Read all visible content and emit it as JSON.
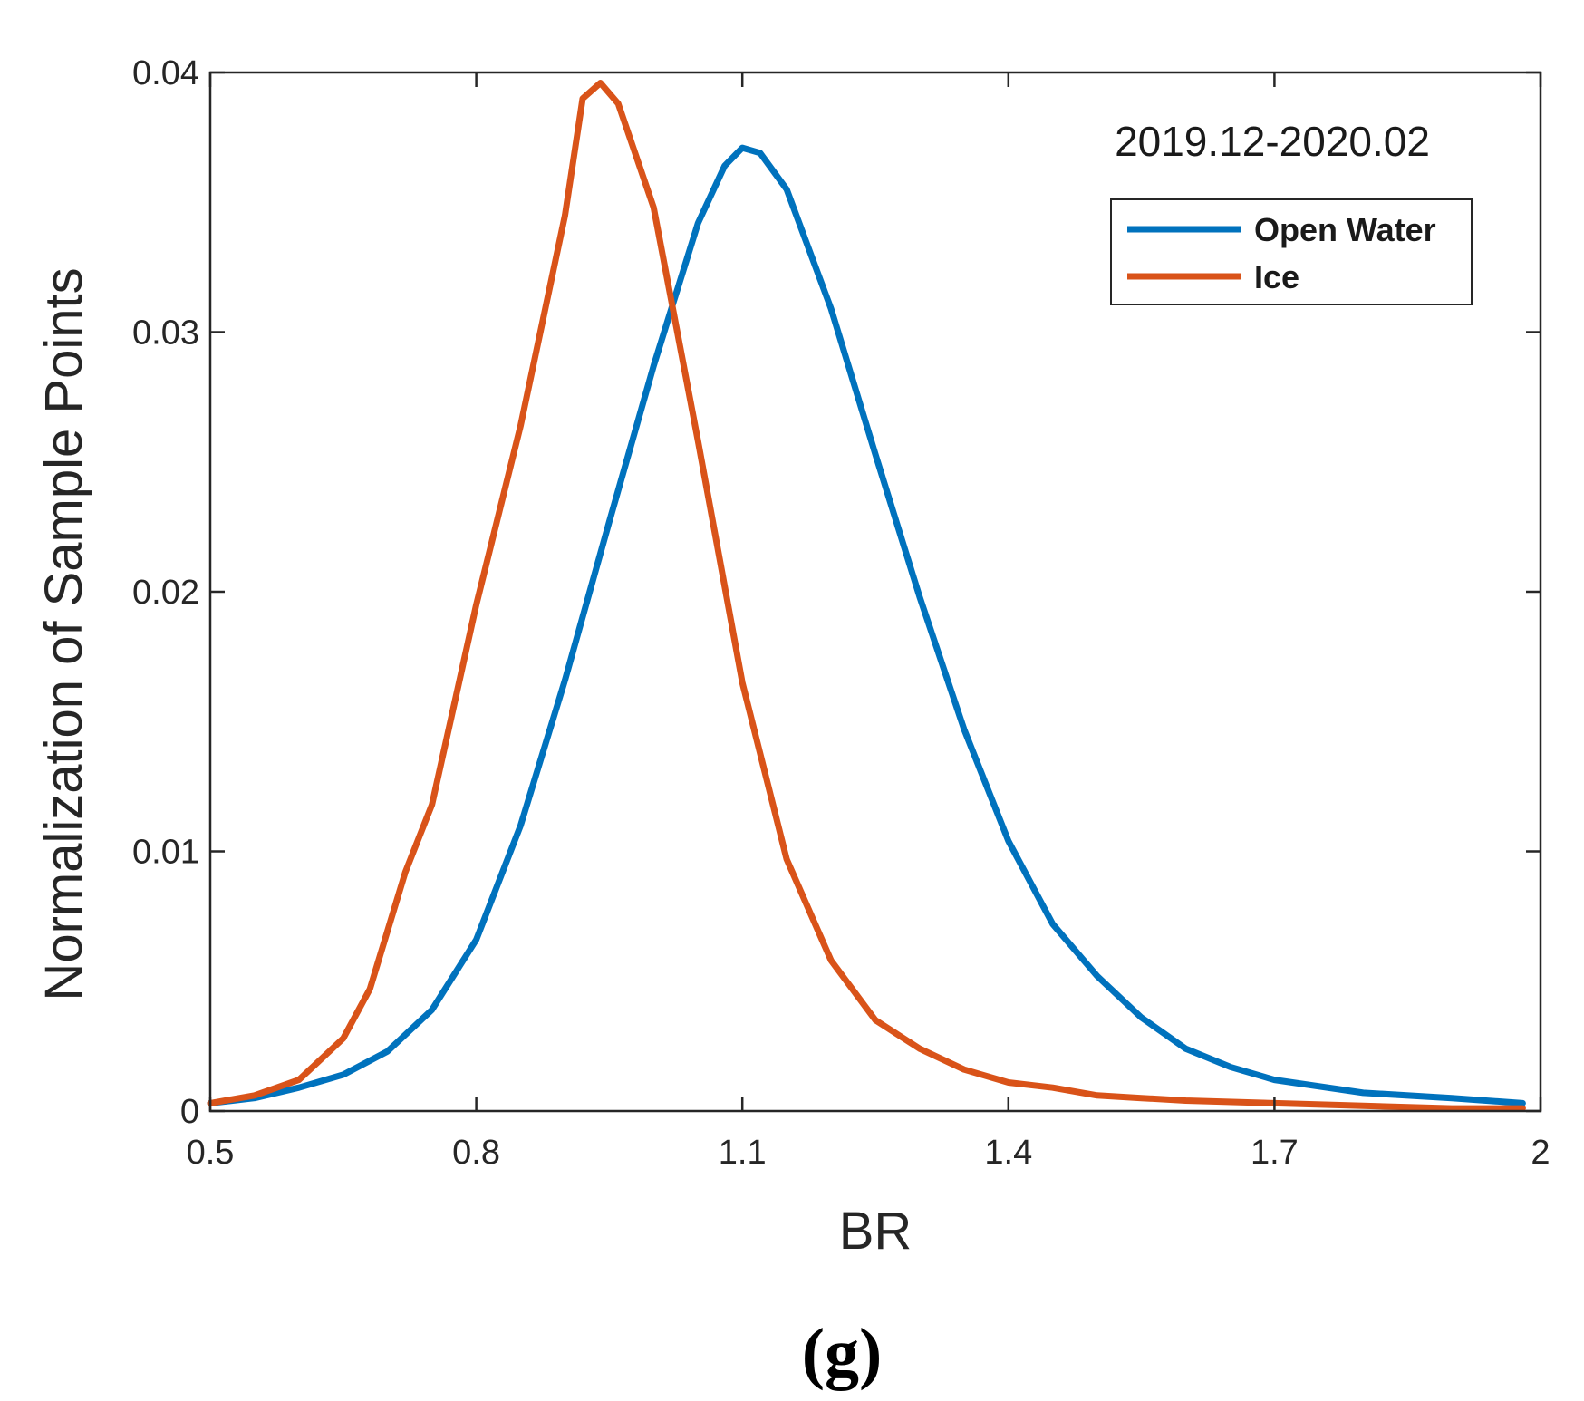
{
  "chart_data": {
    "type": "line",
    "title": "",
    "annotation": "2019.12-2020.02",
    "xlabel": "BR",
    "ylabel": "Normalization of Sample Points",
    "xlim": [
      0.5,
      2.0
    ],
    "ylim": [
      0,
      0.04
    ],
    "xticks": [
      0.5,
      0.8,
      1.1,
      1.4,
      1.7,
      2.0
    ],
    "xtick_labels": [
      "0.5",
      "0.8",
      "1.1",
      "1.4",
      "1.7",
      "2"
    ],
    "yticks": [
      0,
      0.01,
      0.02,
      0.03,
      0.04
    ],
    "ytick_labels": [
      "0",
      "0.01",
      "0.02",
      "0.03",
      "0.04"
    ],
    "grid": false,
    "legend_position": "top-right",
    "series": [
      {
        "name": "Open Water",
        "color": "#0072BD",
        "x": [
          0.5,
          0.55,
          0.6,
          0.65,
          0.7,
          0.75,
          0.8,
          0.85,
          0.9,
          0.95,
          1.0,
          1.05,
          1.08,
          1.1,
          1.12,
          1.15,
          1.2,
          1.25,
          1.3,
          1.35,
          1.4,
          1.45,
          1.5,
          1.55,
          1.6,
          1.65,
          1.7,
          1.8,
          1.9,
          1.98
        ],
        "y": [
          0.0003,
          0.0005,
          0.0009,
          0.0014,
          0.0023,
          0.0039,
          0.0066,
          0.011,
          0.0166,
          0.0227,
          0.0287,
          0.0342,
          0.0364,
          0.0371,
          0.0369,
          0.0355,
          0.0309,
          0.0253,
          0.0198,
          0.0147,
          0.0104,
          0.0072,
          0.0052,
          0.0036,
          0.0024,
          0.0017,
          0.0012,
          0.0007,
          0.0005,
          0.0003
        ]
      },
      {
        "name": "Ice",
        "color": "#D95319",
        "x": [
          0.5,
          0.55,
          0.6,
          0.65,
          0.68,
          0.72,
          0.75,
          0.8,
          0.85,
          0.9,
          0.92,
          0.94,
          0.96,
          0.98,
          1.0,
          1.05,
          1.1,
          1.15,
          1.2,
          1.25,
          1.3,
          1.35,
          1.4,
          1.45,
          1.5,
          1.55,
          1.6,
          1.7,
          1.8,
          1.9,
          1.98
        ],
        "y": [
          0.0003,
          0.0006,
          0.0012,
          0.0028,
          0.0047,
          0.0092,
          0.0118,
          0.0195,
          0.0264,
          0.0345,
          0.039,
          0.0396,
          0.0388,
          0.0368,
          0.0348,
          0.0258,
          0.0165,
          0.0097,
          0.0058,
          0.0035,
          0.0024,
          0.0016,
          0.0011,
          0.0009,
          0.0006,
          0.0005,
          0.0004,
          0.0003,
          0.0002,
          0.0001,
          0.0001
        ]
      }
    ]
  },
  "panel_label": "(g)"
}
